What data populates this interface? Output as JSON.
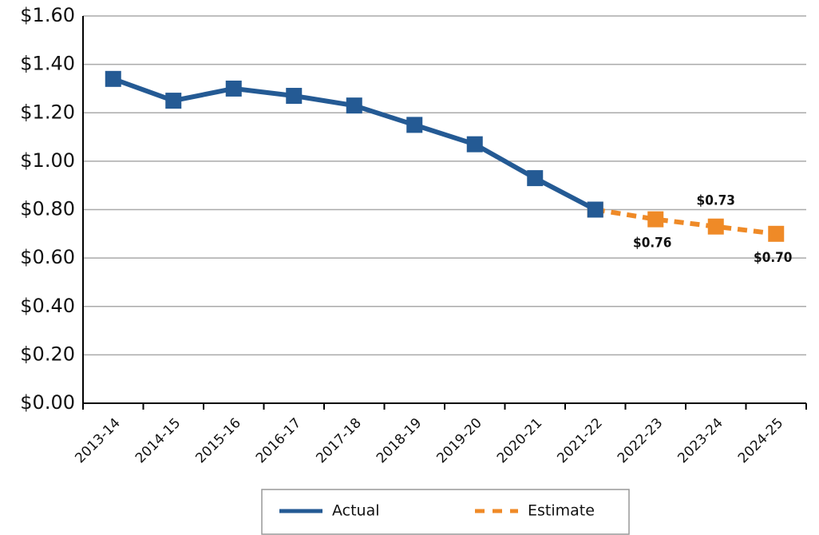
{
  "chart_data": {
    "type": "line",
    "categories": [
      "2013-14",
      "2014-15",
      "2015-16",
      "2016-17",
      "2017-18",
      "2018-19",
      "2019-20",
      "2020-21",
      "2021-22",
      "2022-23",
      "2023-24",
      "2024-25"
    ],
    "series": [
      {
        "name": "Actual",
        "color": "#245a94",
        "dash": false,
        "values": [
          1.34,
          1.25,
          1.3,
          1.27,
          1.23,
          1.15,
          1.07,
          0.93,
          0.8,
          null,
          null,
          null
        ]
      },
      {
        "name": "Estimate",
        "color": "#ef8a27",
        "dash": true,
        "values": [
          null,
          null,
          null,
          null,
          null,
          null,
          null,
          null,
          0.8,
          0.76,
          0.73,
          0.7
        ],
        "value_labels": [
          null,
          null,
          null,
          null,
          null,
          null,
          null,
          null,
          null,
          "$0.76",
          "$0.73",
          "$0.70"
        ]
      }
    ],
    "ylim": [
      0,
      1.6
    ],
    "yticks": [
      {
        "value": 0,
        "label": "$0.00"
      },
      {
        "value": 0.2,
        "label": "$0.20"
      },
      {
        "value": 0.4,
        "label": "$0.40"
      },
      {
        "value": 0.6,
        "label": "$0.60"
      },
      {
        "value": 0.8,
        "label": "$0.80"
      },
      {
        "value": 1.0,
        "label": "$1.00"
      },
      {
        "value": 1.2,
        "label": "$1.20"
      },
      {
        "value": 1.4,
        "label": "$1.40"
      },
      {
        "value": 1.6,
        "label": "$1.60"
      }
    ],
    "grid": true,
    "legend": "bottom"
  }
}
